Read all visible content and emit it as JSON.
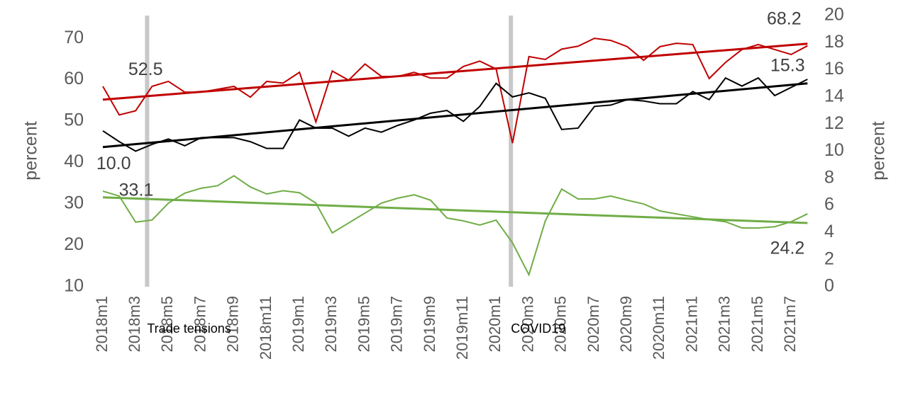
{
  "chart_data": {
    "type": "line",
    "y_label": "percent",
    "y2_label": "percent",
    "categories": [
      "2018m1",
      null,
      "2018m3",
      null,
      "2018m5",
      null,
      "2018m7",
      null,
      "2018m9",
      null,
      "2018m11",
      null,
      "2019m1",
      null,
      "2019m3",
      null,
      "2019m5",
      null,
      "2019m7",
      null,
      "2019m9",
      null,
      "2019m11",
      null,
      "2020m1",
      null,
      "2020m3",
      null,
      "2020m5",
      null,
      "2020m7",
      null,
      "2020m9",
      null,
      "2020m11",
      null,
      "2021m1",
      null,
      "2021m3",
      null,
      "2021m5",
      null,
      "2021m7",
      null
    ],
    "series": [
      {
        "color": "#c00000",
        "axis": "y",
        "values": [
          58.4,
          51.5,
          52.5,
          58.4,
          59.6,
          57.0,
          57.0,
          57.7,
          58.4,
          55.8,
          59.6,
          59.2,
          61.8,
          49.8,
          62.1,
          59.9,
          63.8,
          60.8,
          60.8,
          61.8,
          60.4,
          60.4,
          63.2,
          64.5,
          62.6,
          44.7,
          65.6,
          64.9,
          67.4,
          68.1,
          70.0,
          69.5,
          68.0,
          64.7,
          68.0,
          68.8,
          68.5,
          60.3,
          64.2,
          67.3,
          68.5,
          67.3,
          66.1,
          68.2
        ]
      },
      {
        "color": "#000000",
        "axis": "y2",
        "values": [
          11.5,
          10.7,
          10.0,
          10.5,
          10.9,
          10.4,
          11.0,
          11.0,
          11.0,
          10.7,
          10.2,
          10.2,
          12.3,
          11.7,
          11.7,
          11.1,
          11.7,
          11.4,
          11.9,
          12.3,
          12.8,
          13.0,
          12.2,
          13.3,
          15.0,
          14.0,
          14.3,
          13.9,
          11.6,
          11.7,
          13.3,
          13.4,
          13.8,
          13.7,
          13.5,
          13.5,
          14.4,
          13.8,
          15.4,
          14.8,
          15.4,
          14.1,
          14.7,
          15.3
        ]
      },
      {
        "color": "#70ad47",
        "axis": "y",
        "values": [
          33.1,
          31.9,
          25.6,
          26.1,
          30.2,
          32.6,
          33.8,
          34.4,
          36.8,
          34.1,
          32.4,
          33.2,
          32.7,
          30.2,
          23.0,
          25.4,
          27.8,
          30.2,
          31.4,
          32.2,
          30.9,
          26.6,
          25.9,
          24.9,
          26.1,
          20.6,
          12.9,
          25.9,
          33.6,
          31.2,
          31.2,
          31.9,
          30.9,
          30.0,
          28.3,
          27.6,
          26.9,
          26.2,
          25.7,
          24.2,
          24.2,
          24.5,
          25.7,
          27.6
        ]
      }
    ],
    "trendlines": [
      {
        "color": "#c00000",
        "axis": "y",
        "values": [
          55.2,
          68.7
        ]
      },
      {
        "color": "#000000",
        "axis": "y2",
        "values": [
          10.3,
          15.0
        ]
      },
      {
        "color": "#70ad47",
        "axis": "y",
        "values": [
          31.6,
          25.4
        ]
      }
    ],
    "annotations": [
      {
        "text": "52.5",
        "series": 0,
        "index": 2
      },
      {
        "text": "68.2",
        "series": 0,
        "index": 43
      },
      {
        "text": "10.0",
        "series": 1,
        "index": 2
      },
      {
        "text": "15.3",
        "series": 1,
        "index": 43
      },
      {
        "text": "33.1",
        "series": 2,
        "index": 0
      },
      {
        "text": "24.2",
        "series": 2,
        "index": 40
      }
    ],
    "events": [
      {
        "label": "Trade tensions",
        "position": 2.7
      },
      {
        "label": "COVID19",
        "position": 24.9
      }
    ],
    "ylim": [
      10,
      75.5
    ],
    "yticks": [
      10,
      20,
      30,
      40,
      50,
      60,
      70
    ],
    "y2lim": [
      0,
      20
    ],
    "y2ticks": [
      0,
      2,
      4,
      6,
      8,
      10,
      12,
      14,
      16,
      18,
      20
    ]
  }
}
